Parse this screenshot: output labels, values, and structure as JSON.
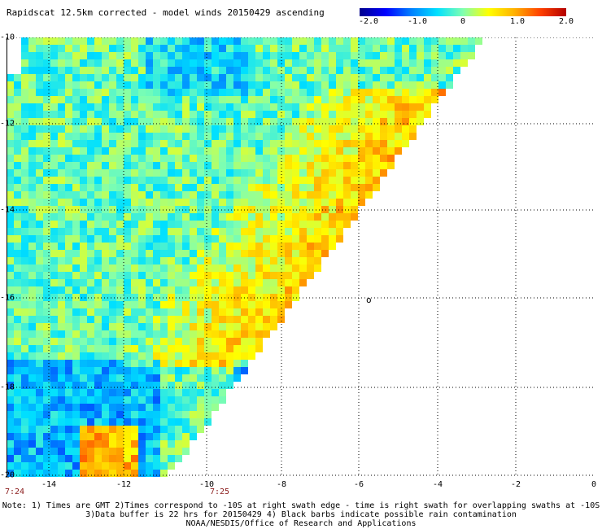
{
  "title": "Rapidscat 12.5km corrected - model winds 20150429 ascending",
  "colorbar": {
    "ticks": [
      "-2.0",
      "-1.0",
      "0",
      "1.0",
      "2.0"
    ],
    "min": -2.0,
    "max": 2.0,
    "colors": [
      "#00008c",
      "#0000ff",
      "#0080ff",
      "#00e0ff",
      "#80ffb0",
      "#ffff00",
      "#ffb000",
      "#ff4000",
      "#b40000"
    ]
  },
  "map": {
    "lon_range": [
      -15,
      0
    ],
    "lat_range": [
      -10,
      -20
    ],
    "x_ticks": [
      "-14",
      "-12",
      "-10",
      "-8",
      "-6",
      "-4",
      "-2",
      "0"
    ],
    "y_ticks": [
      "-10",
      "-12",
      "-14",
      "-16",
      "-18",
      "-20"
    ],
    "times": [
      "7:24",
      "7:25"
    ],
    "island_marker": "o"
  },
  "notes": {
    "line1": "Note: 1) Times are GMT 2)Times correspond to -10S at right swath edge - time is right swath for overlapping swaths at -10S",
    "line2": "3)Data buffer is 22 hrs for 20150429 4) Black barbs indicate possible rain contamination",
    "line3": "NOAA/NESDIS/Office of Research and Applications"
  }
}
